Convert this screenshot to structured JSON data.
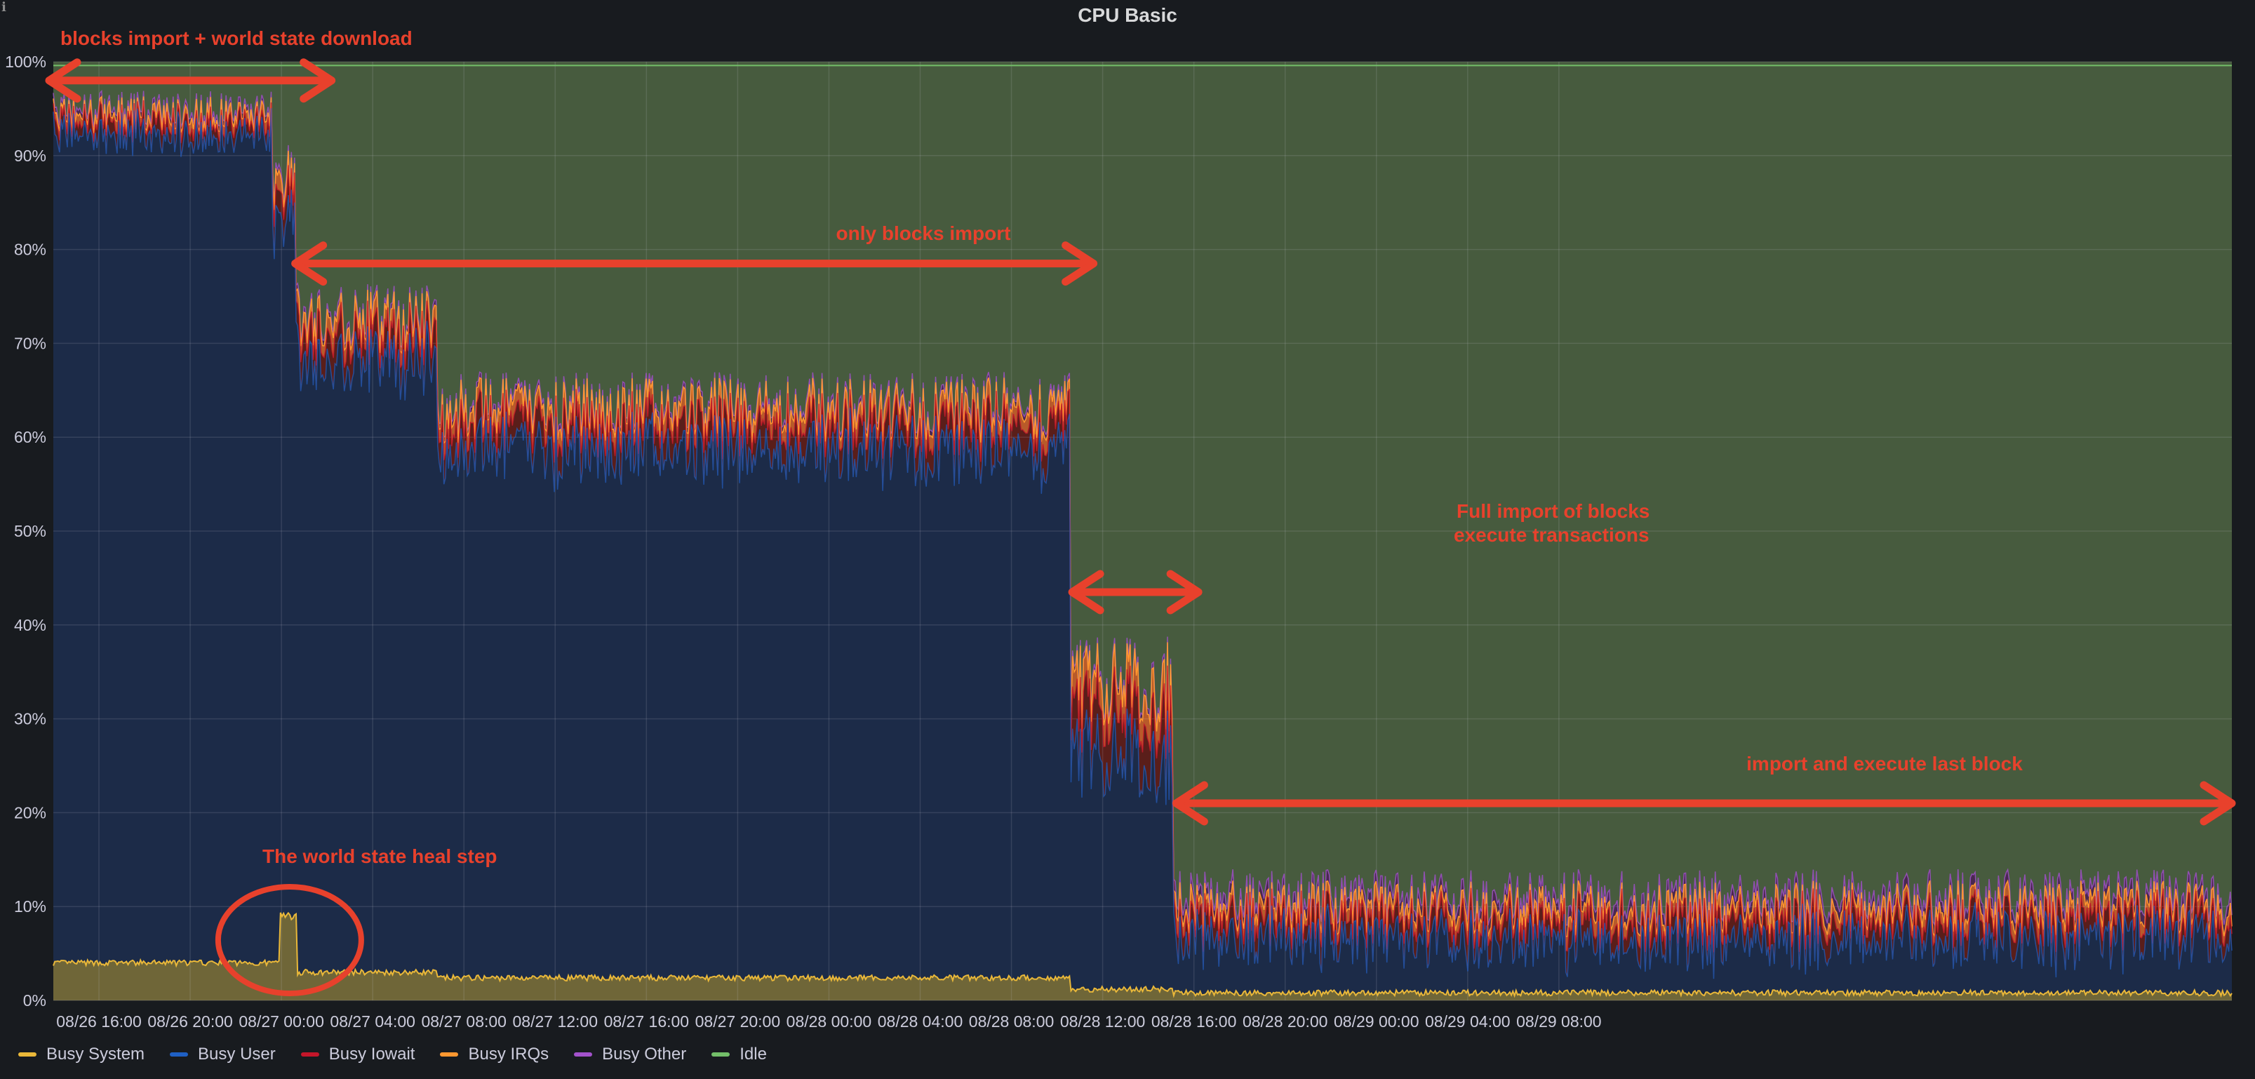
{
  "panel": {
    "title": "CPU Basic",
    "info_icon": "info-icon"
  },
  "chart_data": {
    "type": "area",
    "stacked": true,
    "title": "CPU Basic",
    "ylim": [
      0,
      100
    ],
    "y_ticks": [
      "0%",
      "10%",
      "20%",
      "30%",
      "40%",
      "50%",
      "60%",
      "70%",
      "80%",
      "90%",
      "100%"
    ],
    "x_range_hours": [
      0,
      95.5
    ],
    "x_ticks": [
      "08/26 16:00",
      "08/26 20:00",
      "08/27 00:00",
      "08/27 04:00",
      "08/27 08:00",
      "08/27 12:00",
      "08/27 16:00",
      "08/27 20:00",
      "08/28 00:00",
      "08/28 04:00",
      "08/28 08:00",
      "08/28 12:00",
      "08/28 16:00",
      "08/28 20:00",
      "08/29 00:00",
      "08/29 04:00",
      "08/29 08:00"
    ],
    "grid": true,
    "legend_position": "bottom-left",
    "series": [
      {
        "name": "Busy System",
        "color": "#eab839",
        "fill": "#6f6638"
      },
      {
        "name": "Busy User",
        "color": "#1f60c4",
        "fill": "#1c2b48"
      },
      {
        "name": "Busy Iowait",
        "color": "#c4162a",
        "fill": "#5a1e1a"
      },
      {
        "name": "Busy IRQs",
        "color": "#ff9830",
        "fill": "#b85a2a"
      },
      {
        "name": "Busy Other",
        "color": "#a352cc",
        "fill": "#4a2850"
      },
      {
        "name": "Idle",
        "color": "#73bf69",
        "fill": "#475b3e"
      }
    ],
    "phases": [
      {
        "x_start": 0,
        "x_end": 9.6,
        "system": 4,
        "busy_top": 95
      },
      {
        "x_start": 9.6,
        "x_end": 10.6,
        "system": 4,
        "busy_top": 88
      },
      {
        "x_start": 10.6,
        "x_end": 16.8,
        "system": 3,
        "busy_top": 73
      },
      {
        "x_start": 16.8,
        "x_end": 44.6,
        "system": 2.4,
        "busy_top": 63.5
      },
      {
        "x_start": 44.6,
        "x_end": 49.1,
        "system": 1.2,
        "busy_top": 34
      },
      {
        "x_start": 49.1,
        "x_end": 95.5,
        "system": 0.8,
        "busy_top": 11
      }
    ],
    "heal_spike": {
      "x_start": 9.95,
      "x_end": 10.7,
      "system": 9
    },
    "annotations": [
      {
        "text": "blocks import + world state download",
        "x": 0,
        "x_end": 12.2,
        "y": 98
      },
      {
        "text": "only blocks import",
        "x": 10.6,
        "x_end": 45.6,
        "y": 78.5
      },
      {
        "text": "Full import of blocks",
        "x": 44.6,
        "y": 52
      },
      {
        "text": "execute transactions",
        "x": 44.6,
        "y": 49.5
      },
      {
        "text": "Full import/execute arrow",
        "x": 44.6,
        "x_end": 50.2,
        "y": 43.5
      },
      {
        "text": "import and execute last block",
        "x": 49.1,
        "x_end": 95.5,
        "y": 21
      },
      {
        "text": "The world state heal step",
        "x": 10.3,
        "y": 6.5
      }
    ]
  },
  "legend": {
    "items": [
      "Busy System",
      "Busy User",
      "Busy Iowait",
      "Busy IRQs",
      "Busy Other",
      "Idle"
    ]
  }
}
